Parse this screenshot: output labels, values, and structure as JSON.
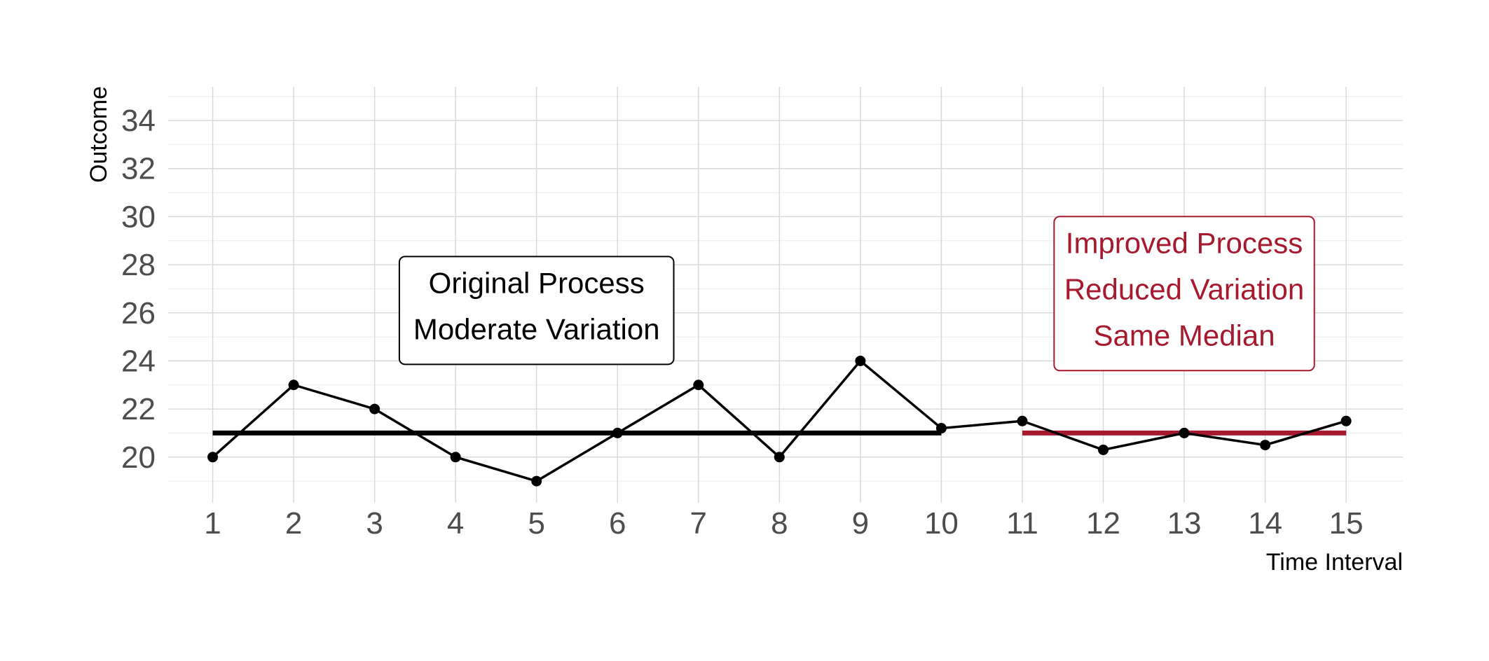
{
  "chart_data": {
    "type": "line",
    "xlabel": "Time Interval",
    "ylabel": "Outcome",
    "x": [
      1,
      2,
      3,
      4,
      5,
      6,
      7,
      8,
      9,
      10,
      11,
      12,
      13,
      14,
      15
    ],
    "x_ticks": [
      "1",
      "2",
      "3",
      "4",
      "5",
      "6",
      "7",
      "8",
      "9",
      "10",
      "11",
      "12",
      "13",
      "14",
      "15"
    ],
    "y_ticks": [
      "20",
      "22",
      "24",
      "26",
      "28",
      "30",
      "32",
      "34"
    ],
    "xlim": [
      0.45,
      15.7
    ],
    "ylim": [
      18.1,
      35.4
    ],
    "grid": true,
    "series": [
      {
        "values": [
          20,
          23,
          22,
          20,
          19,
          21,
          23,
          20,
          24,
          21.2,
          21.5,
          20.3,
          21.0,
          20.5,
          21.5
        ],
        "color": "#000000"
      }
    ],
    "medians": [
      {
        "x_start": 1,
        "x_end": 10,
        "value": 21,
        "color": "#000000"
      },
      {
        "x_start": 11,
        "x_end": 15,
        "value": 21,
        "color": "#a6192e"
      }
    ],
    "annotations": [
      {
        "lines": [
          "Original Process",
          "Moderate Variation"
        ],
        "x": 5,
        "y": 26.1,
        "color": "#000000"
      },
      {
        "lines": [
          "Improved Process",
          "Reduced Variation",
          "Same Median"
        ],
        "x": 13,
        "y": 26.8,
        "color": "#a6192e"
      }
    ]
  }
}
